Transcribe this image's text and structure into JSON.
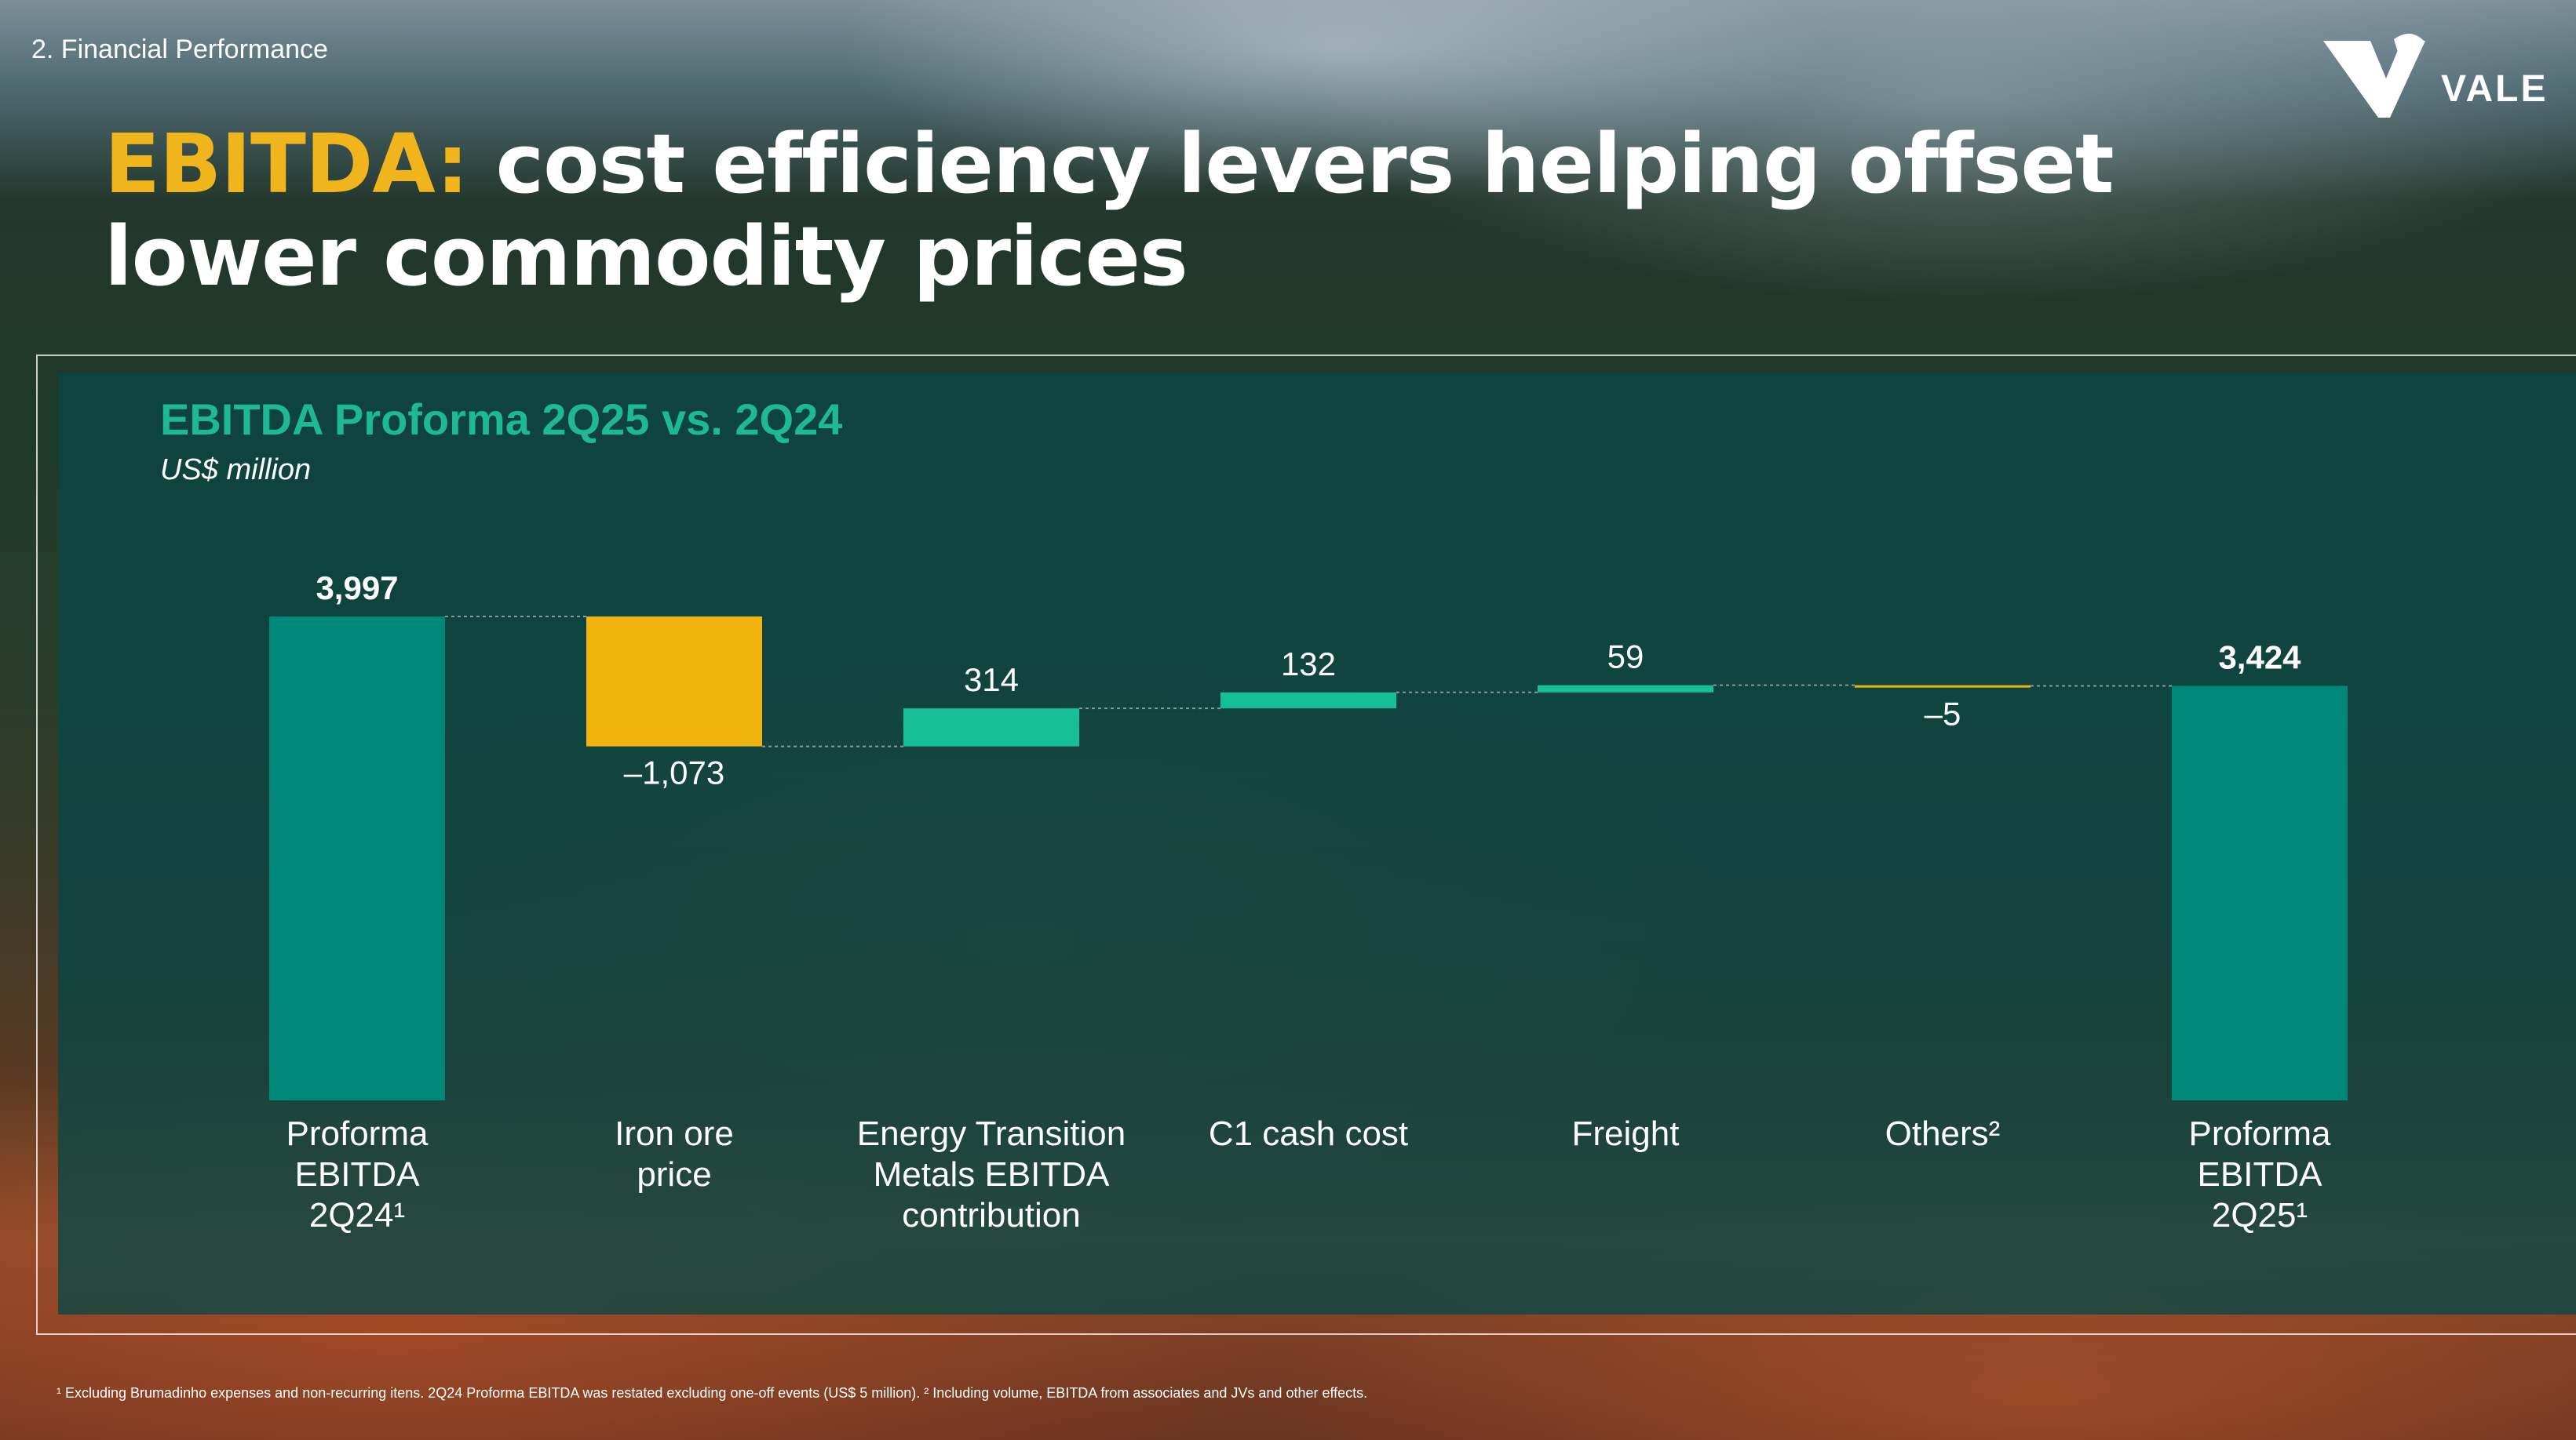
{
  "header": {
    "section_label": "2. Financial Performance",
    "logo_text": "VALE"
  },
  "title": {
    "accent": "EBITDA:",
    "line1_rest": " cost efficiency levers helping offset",
    "line2": "lower commodity prices"
  },
  "chart_data": {
    "type": "waterfall",
    "title": "EBITDA Proforma 2Q25 vs. 2Q24",
    "unit": "US$ million",
    "categories": [
      [
        "Proforma",
        "EBITDA",
        "2Q24¹"
      ],
      [
        "Iron ore",
        "price"
      ],
      [
        "Energy Transition",
        "Metals EBITDA",
        "contribution"
      ],
      [
        "C1 cash cost"
      ],
      [
        "Freight"
      ],
      [
        "Others²"
      ],
      [
        "Proforma",
        "EBITDA",
        "2Q25¹"
      ]
    ],
    "values": [
      3997,
      -1073,
      314,
      132,
      59,
      -5,
      3424
    ],
    "kinds": [
      "total",
      "delta",
      "delta",
      "delta",
      "delta",
      "delta",
      "total"
    ],
    "labels": [
      "3,997",
      "–1,073",
      "314",
      "132",
      "59",
      "–5",
      "3,424"
    ],
    "colors": {
      "total": "#00877a",
      "positive": "#16bf95",
      "negative": "#f0b30f",
      "connector": "#8a9a95"
    }
  },
  "footnote": "¹ Excluding Brumadinho expenses and non-recurring itens. 2Q24 Proforma EBITDA was restated excluding one-off events (US$ 5 million). ² Including volume, EBITDA from associates and JVs and other effects."
}
